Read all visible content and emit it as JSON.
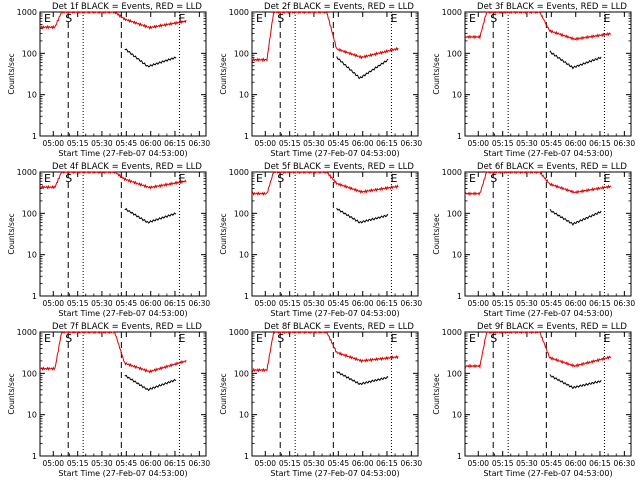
{
  "chart_data": [
    {
      "type": "line",
      "title": "Det  1f BLACK = Events, RED = LLD",
      "xlabel": "Start Time (27-Feb-07 04:53:00)",
      "ylabel": "Counts/sec",
      "yscale": "log",
      "ylim": [
        1,
        1000
      ],
      "yticks": [
        "1",
        "10",
        "100",
        "1000"
      ],
      "xticks": [
        "05:00",
        "05:15",
        "05:30",
        "05:45",
        "06:00",
        "06:15",
        "06:30"
      ],
      "markers": [
        "E",
        "S",
        "E"
      ],
      "series": [
        {
          "name": "Events",
          "color": "#000000",
          "values": {
            "start": 130,
            "min": 48,
            "end": 80
          }
        },
        {
          "name": "LLD",
          "color": "#e00000",
          "values": {
            "pre": 430,
            "peak": 1000,
            "min": 420,
            "end": 600
          }
        }
      ]
    },
    {
      "type": "line",
      "title": "Det  2f BLACK = Events, RED = LLD",
      "xlabel": "Start Time (27-Feb-07 04:53:00)",
      "ylabel": "Counts/sec",
      "yscale": "log",
      "ylim": [
        1,
        1000
      ],
      "yticks": [
        "1",
        "10",
        "100",
        "1000"
      ],
      "xticks": [
        "05:00",
        "05:15",
        "05:30",
        "05:45",
        "06:00",
        "06:15",
        "06:30"
      ],
      "markers": [
        "E",
        "S",
        "E"
      ],
      "series": [
        {
          "name": "Events",
          "color": "#000000",
          "values": {
            "start": 80,
            "min": 25,
            "end": 70
          }
        },
        {
          "name": "LLD",
          "color": "#e00000",
          "values": {
            "pre": 70,
            "peak": 1000,
            "min": 80,
            "end": 130
          }
        }
      ]
    },
    {
      "type": "line",
      "title": "Det  3f BLACK = Events, RED = LLD",
      "xlabel": "Start Time (27-Feb-07 04:53:00)",
      "ylabel": "Counts/sec",
      "yscale": "log",
      "ylim": [
        1,
        1000
      ],
      "yticks": [
        "1",
        "10",
        "100",
        "1000"
      ],
      "xticks": [
        "05:00",
        "05:15",
        "05:30",
        "05:45",
        "06:00",
        "06:15",
        "06:30"
      ],
      "markers": [
        "E",
        "S",
        "E"
      ],
      "series": [
        {
          "name": "Events",
          "color": "#000000",
          "values": {
            "start": 110,
            "min": 45,
            "end": 80
          }
        },
        {
          "name": "LLD",
          "color": "#e00000",
          "values": {
            "pre": 250,
            "peak": 1000,
            "min": 220,
            "end": 300
          }
        }
      ]
    },
    {
      "type": "line",
      "title": "Det  4f BLACK = Events, RED = LLD",
      "xlabel": "Start Time (27-Feb-07 04:53:00)",
      "ylabel": "Counts/sec",
      "yscale": "log",
      "ylim": [
        1,
        1000
      ],
      "yticks": [
        "1",
        "10",
        "100",
        "1000"
      ],
      "xticks": [
        "05:00",
        "05:15",
        "05:30",
        "05:45",
        "06:00",
        "06:15",
        "06:30"
      ],
      "markers": [
        "E",
        "S",
        "E"
      ],
      "series": [
        {
          "name": "Events",
          "color": "#000000",
          "values": {
            "start": 130,
            "min": 60,
            "end": 100
          }
        },
        {
          "name": "LLD",
          "color": "#e00000",
          "values": {
            "pre": 430,
            "peak": 1000,
            "min": 420,
            "end": 600
          }
        }
      ]
    },
    {
      "type": "line",
      "title": "Det  5f BLACK = Events, RED = LLD",
      "xlabel": "Start Time (27-Feb-07 04:53:00)",
      "ylabel": "Counts/sec",
      "yscale": "log",
      "ylim": [
        1,
        1000
      ],
      "yticks": [
        "1",
        "10",
        "100",
        "1000"
      ],
      "xticks": [
        "05:00",
        "05:15",
        "05:30",
        "05:45",
        "06:00",
        "06:15",
        "06:30"
      ],
      "markers": [
        "E",
        "S",
        "E"
      ],
      "series": [
        {
          "name": "Events",
          "color": "#000000",
          "values": {
            "start": 130,
            "min": 60,
            "end": 90
          }
        },
        {
          "name": "LLD",
          "color": "#e00000",
          "values": {
            "pre": 300,
            "peak": 1000,
            "min": 330,
            "end": 450
          }
        }
      ]
    },
    {
      "type": "line",
      "title": "Det  6f BLACK = Events, RED = LLD",
      "xlabel": "Start Time (27-Feb-07 04:53:00)",
      "ylabel": "Counts/sec",
      "yscale": "log",
      "ylim": [
        1,
        1000
      ],
      "yticks": [
        "1",
        "10",
        "100",
        "1000"
      ],
      "xticks": [
        "05:00",
        "05:15",
        "05:30",
        "05:45",
        "06:00",
        "06:15",
        "06:30"
      ],
      "markers": [
        "E",
        "S",
        "E"
      ],
      "series": [
        {
          "name": "Events",
          "color": "#000000",
          "values": {
            "start": 120,
            "min": 55,
            "end": 110
          }
        },
        {
          "name": "LLD",
          "color": "#e00000",
          "values": {
            "pre": 300,
            "peak": 1000,
            "min": 320,
            "end": 450
          }
        }
      ]
    },
    {
      "type": "line",
      "title": "Det  7f BLACK = Events, RED = LLD",
      "xlabel": "Start Time (27-Feb-07 04:53:00)",
      "ylabel": "Counts/sec",
      "yscale": "log",
      "ylim": [
        1,
        1000
      ],
      "yticks": [
        "1",
        "10",
        "100",
        "1000"
      ],
      "xticks": [
        "05:00",
        "05:15",
        "05:30",
        "05:45",
        "06:00",
        "06:15",
        "06:30"
      ],
      "markers": [
        "E",
        "S",
        "E"
      ],
      "series": [
        {
          "name": "Events",
          "color": "#000000",
          "values": {
            "start": 90,
            "min": 40,
            "end": 70
          }
        },
        {
          "name": "LLD",
          "color": "#e00000",
          "values": {
            "pre": 130,
            "peak": 1000,
            "min": 110,
            "end": 200
          }
        }
      ]
    },
    {
      "type": "line",
      "title": "Det  8f BLACK = Events, RED = LLD",
      "xlabel": "Start Time (27-Feb-07 04:53:00)",
      "ylabel": "Counts/sec",
      "yscale": "log",
      "ylim": [
        1,
        1000
      ],
      "yticks": [
        "1",
        "10",
        "100",
        "1000"
      ],
      "xticks": [
        "05:00",
        "05:15",
        "05:30",
        "05:45",
        "06:00",
        "06:15",
        "06:30"
      ],
      "markers": [
        "E",
        "S",
        "E"
      ],
      "series": [
        {
          "name": "Events",
          "color": "#000000",
          "values": {
            "start": 110,
            "min": 55,
            "end": 80
          }
        },
        {
          "name": "LLD",
          "color": "#e00000",
          "values": {
            "pre": 120,
            "peak": 1000,
            "min": 200,
            "end": 250
          }
        }
      ]
    },
    {
      "type": "line",
      "title": "Det  9f BLACK = Events, RED = LLD",
      "xlabel": "Start Time (27-Feb-07 04:53:00)",
      "ylabel": "Counts/sec",
      "yscale": "log",
      "ylim": [
        1,
        1000
      ],
      "yticks": [
        "1",
        "10",
        "100",
        "1000"
      ],
      "xticks": [
        "05:00",
        "05:15",
        "05:30",
        "05:45",
        "06:00",
        "06:15",
        "06:30"
      ],
      "markers": [
        "E",
        "S",
        "E"
      ],
      "series": [
        {
          "name": "Events",
          "color": "#000000",
          "values": {
            "start": 90,
            "min": 45,
            "end": 65
          }
        },
        {
          "name": "LLD",
          "color": "#e00000",
          "values": {
            "pre": 150,
            "peak": 1000,
            "min": 150,
            "end": 250
          }
        }
      ]
    }
  ]
}
